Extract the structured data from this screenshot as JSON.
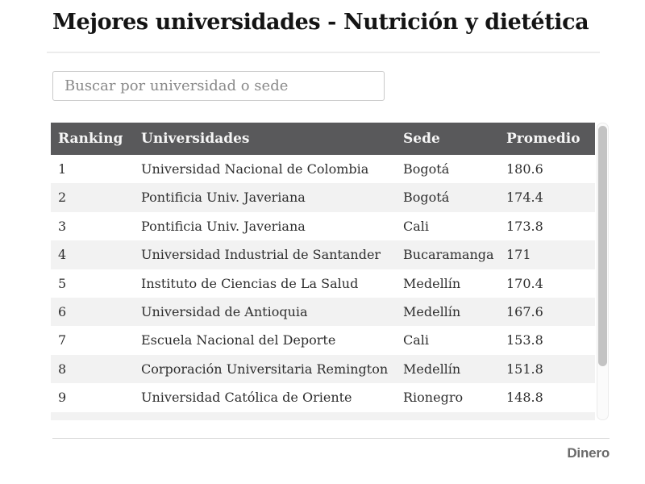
{
  "page": {
    "title": "Mejores universidades - Nutrición y dietética"
  },
  "search": {
    "placeholder": "Buscar por universidad o sede",
    "value": ""
  },
  "table": {
    "columns": [
      "Ranking",
      "Universidades",
      "Sede",
      "Promedio"
    ],
    "rows": [
      {
        "ranking": "1",
        "universidad": "Universidad Nacional de Colombia",
        "sede": "Bogotá",
        "promedio": "180.6"
      },
      {
        "ranking": "2",
        "universidad": "Pontificia Univ. Javeriana",
        "sede": "Bogotá",
        "promedio": "174.4"
      },
      {
        "ranking": "3",
        "universidad": "Pontificia Univ. Javeriana",
        "sede": "Cali",
        "promedio": "173.8"
      },
      {
        "ranking": "4",
        "universidad": "Universidad Industrial de Santander",
        "sede": "Bucaramanga",
        "promedio": "171"
      },
      {
        "ranking": "5",
        "universidad": "Instituto de Ciencias de La Salud",
        "sede": "Medellín",
        "promedio": "170.4"
      },
      {
        "ranking": "6",
        "universidad": "Universidad de Antioquia",
        "sede": "Medellín",
        "promedio": "167.6"
      },
      {
        "ranking": "7",
        "universidad": "Escuela Nacional del Deporte",
        "sede": "Cali",
        "promedio": "153.8"
      },
      {
        "ranking": "8",
        "universidad": "Corporación Universitaria Remington",
        "sede": "Medellín",
        "promedio": "151.8"
      },
      {
        "ranking": "9",
        "universidad": "Universidad Católica de Oriente",
        "sede": "Rionegro",
        "promedio": "148.8"
      }
    ]
  },
  "footer": {
    "brand": "Dinero"
  },
  "colors": {
    "header_bg": "#59595b",
    "stripe": "#f2f2f2",
    "row_text": "#2e2e2e",
    "brand_gray": "#6a6a6a"
  }
}
